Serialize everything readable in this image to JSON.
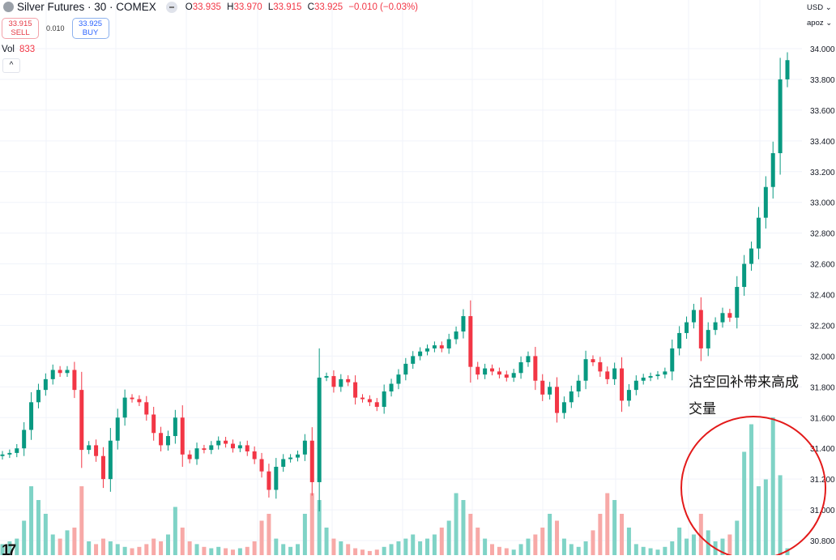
{
  "header": {
    "symbol_title": "Silver Futures · 30 · COMEX",
    "ohlc": [
      {
        "label": "O",
        "value": "33.935"
      },
      {
        "label": "H",
        "value": "33.970"
      },
      {
        "label": "L",
        "value": "33.915"
      },
      {
        "label": "C",
        "value": "33.925"
      }
    ],
    "change": "−0.010 (−0.03%)"
  },
  "trade": {
    "sell_price": "33.915",
    "sell_label": "SELL",
    "spread": "0.010",
    "buy_price": "33.925",
    "buy_label": "BUY"
  },
  "volume_legend": {
    "label": "Vol",
    "value": "833"
  },
  "axis_controls": {
    "currency": "USD ⌄",
    "scale": "apoz ⌄"
  },
  "annotation": {
    "line1": "沽空回补带来高成",
    "line2": "交量"
  },
  "logo_text": "17",
  "colors": {
    "up": "#089981",
    "down": "#f23645",
    "up_volume": "#7fd3c6",
    "down_volume": "#f7a9a7",
    "annotation_circle": "#e31a1a",
    "grid": "#f0f3fa"
  },
  "chart_data": {
    "type": "candlestick",
    "ylim": [
      30.75,
      34.05
    ],
    "y_ticks": [
      "34.000",
      "33.800",
      "33.600",
      "33.400",
      "33.200",
      "33.000",
      "32.800",
      "32.600",
      "32.400",
      "32.200",
      "32.000",
      "31.800",
      "31.600",
      "31.400",
      "31.200",
      "31.000",
      "30.800"
    ],
    "grid": true,
    "close": [
      31.36,
      31.37,
      31.4,
      31.52,
      31.7,
      31.78,
      31.85,
      31.91,
      31.89,
      31.91,
      31.78,
      31.39,
      31.42,
      31.35,
      31.2,
      31.45,
      31.6,
      31.73,
      31.72,
      31.7,
      31.62,
      31.5,
      31.42,
      31.48,
      31.6,
      31.36,
      31.33,
      31.4,
      31.39,
      31.42,
      31.45,
      31.43,
      31.4,
      31.42,
      31.38,
      31.33,
      31.25,
      31.13,
      31.28,
      31.33,
      31.34,
      31.36,
      31.45,
      31.18,
      31.86,
      31.87,
      31.8,
      31.85,
      31.83,
      31.73,
      31.72,
      31.7,
      31.67,
      31.77,
      31.82,
      31.88,
      31.95,
      32.0,
      32.03,
      32.05,
      32.07,
      32.05,
      32.11,
      32.16,
      32.26,
      31.93,
      31.88,
      31.92,
      31.9,
      31.88,
      31.86,
      31.89,
      31.96,
      32.0,
      31.84,
      31.75,
      31.8,
      31.63,
      31.7,
      31.77,
      31.84,
      31.98,
      31.96,
      31.9,
      31.85,
      31.92,
      31.71,
      31.78,
      31.84,
      31.86,
      31.87,
      31.88,
      31.9,
      32.05,
      32.15,
      32.22,
      32.3,
      32.05,
      32.17,
      32.22,
      32.28,
      32.25,
      32.45,
      32.6,
      32.7,
      32.9,
      33.1,
      33.32,
      33.8,
      33.925
    ],
    "volume": [
      8,
      10,
      12,
      25,
      50,
      40,
      30,
      15,
      12,
      18,
      20,
      50,
      10,
      8,
      12,
      10,
      8,
      6,
      5,
      6,
      8,
      12,
      10,
      15,
      35,
      20,
      10,
      8,
      6,
      5,
      6,
      5,
      4,
      5,
      6,
      10,
      25,
      30,
      12,
      8,
      6,
      8,
      30,
      45,
      40,
      20,
      12,
      10,
      8,
      5,
      4,
      3,
      4,
      6,
      8,
      10,
      12,
      15,
      10,
      12,
      15,
      20,
      25,
      45,
      40,
      30,
      20,
      12,
      8,
      6,
      5,
      4,
      8,
      12,
      15,
      20,
      30,
      25,
      12,
      8,
      6,
      10,
      18,
      30,
      45,
      40,
      30,
      20,
      8,
      6,
      5,
      4,
      6,
      10,
      20,
      12,
      15,
      30,
      18,
      10,
      12,
      15,
      25,
      75,
      95,
      50,
      55,
      100,
      58,
      5
    ]
  }
}
